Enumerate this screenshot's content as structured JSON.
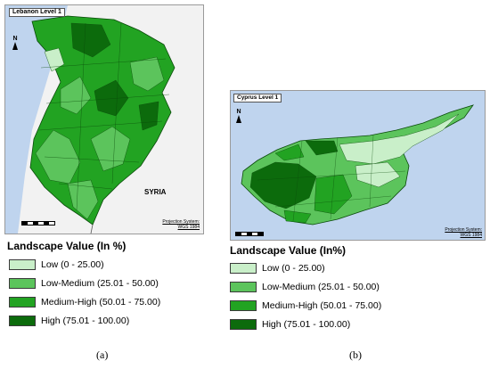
{
  "colors": {
    "low": "#c9efc9",
    "low_medium": "#5cc45c",
    "medium_high": "#22a322",
    "high": "#0c6b0c",
    "sea": "#bfd4ee",
    "land_outside": "#f0f0f0"
  },
  "panel_a": {
    "map_title": "Lebanon Level 1",
    "north_label": "N",
    "country_label": "SYRIA",
    "projection_line1": "Projection System:",
    "projection_line2": "WGS 1984",
    "legend": {
      "title": "Landscape Value (In %)",
      "items": [
        {
          "label": "Low (0 - 25.00)",
          "color_key": "low"
        },
        {
          "label": "Low-Medium (25.01 - 50.00)",
          "color_key": "low_medium"
        },
        {
          "label": "Medium-High (50.01 - 75.00)",
          "color_key": "medium_high"
        },
        {
          "label": "High (75.01 - 100.00)",
          "color_key": "high"
        }
      ]
    },
    "caption": "(a)"
  },
  "panel_b": {
    "map_title": "Cyprus Level 1",
    "north_label": "N",
    "projection_line1": "Projection System:",
    "projection_line2": "WGS 1984",
    "legend": {
      "title": "Landscape Value (In%)",
      "items": [
        {
          "label": "Low (0 - 25.00)",
          "color_key": "low"
        },
        {
          "label": "Low-Medium (25.01 - 50.00)",
          "color_key": "low_medium"
        },
        {
          "label": "Medium-High (50.01 - 75.00)",
          "color_key": "medium_high"
        },
        {
          "label": "High (75.01 - 100.00)",
          "color_key": "high"
        }
      ]
    },
    "caption": "(b)"
  }
}
